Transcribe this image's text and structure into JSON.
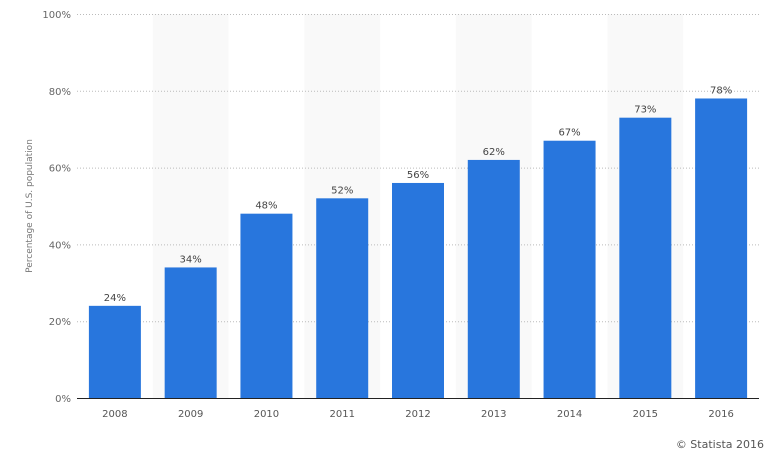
{
  "chart_data": {
    "type": "bar",
    "title": "",
    "xlabel": "",
    "ylabel": "Percentage of U.S. population",
    "categories": [
      "2008",
      "2009",
      "2010",
      "2011",
      "2012",
      "2013",
      "2014",
      "2015",
      "2016"
    ],
    "values": [
      24,
      34,
      48,
      52,
      56,
      62,
      67,
      73,
      78
    ],
    "value_labels": [
      "24%",
      "34%",
      "48%",
      "52%",
      "56%",
      "62%",
      "67%",
      "73%",
      "78%"
    ],
    "ylim": [
      0,
      100
    ],
    "yticks": [
      0,
      20,
      40,
      60,
      80,
      100
    ],
    "ytick_labels": [
      "0%",
      "20%",
      "40%",
      "60%",
      "80%",
      "100%"
    ],
    "grid": true,
    "bar_color": "#2876dd",
    "band_color": "#f9f9f9"
  },
  "credit": "© Statista 2016"
}
